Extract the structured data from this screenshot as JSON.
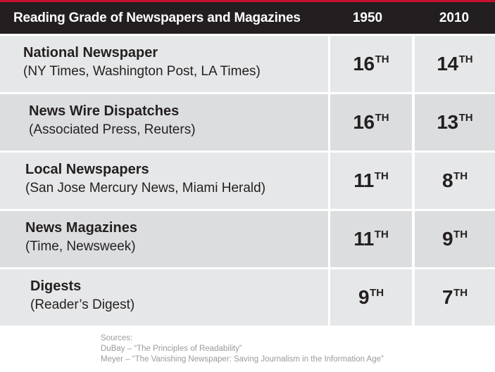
{
  "chart_data": {
    "type": "table",
    "title": "Reading Grade of Newspapers and Magazines",
    "columns": [
      "1950",
      "2010"
    ],
    "rows": [
      {
        "name": "National Newspaper",
        "examples": "(NY Times, Washington Post, LA Times)",
        "grades": [
          {
            "num": "16",
            "sfx": "TH"
          },
          {
            "num": "14",
            "sfx": "TH"
          }
        ]
      },
      {
        "name": "News Wire Dispatches",
        "examples": "(Associated Press, Reuters)",
        "grades": [
          {
            "num": "16",
            "sfx": "TH"
          },
          {
            "num": "13",
            "sfx": "TH"
          }
        ]
      },
      {
        "name": "Local Newspapers",
        "examples": "(San Jose Mercury  News, Miami Herald)",
        "grades": [
          {
            "num": "11",
            "sfx": "TH"
          },
          {
            "num": "8",
            "sfx": "TH"
          }
        ]
      },
      {
        "name": "News Magazines",
        "examples": "(Time, Newsweek)",
        "grades": [
          {
            "num": "11",
            "sfx": "TH"
          },
          {
            "num": "9",
            "sfx": "TH"
          }
        ]
      },
      {
        "name": "Digests",
        "examples": "(Reader’s Digest)",
        "grades": [
          {
            "num": "9",
            "sfx": "TH"
          },
          {
            "num": "7",
            "sfx": "TH"
          }
        ]
      }
    ]
  },
  "sources": {
    "heading": "Sources:",
    "items": [
      "DuBay – “The Principles of Readability”",
      "Meyer – “The Vanishing Newspaper: Saving Journalism in the Information Age”"
    ]
  },
  "colors": {
    "accent": "#c8102e",
    "header_bg": "#231f20",
    "row_light": "#e6e7e8",
    "row_dark": "#dcdddf",
    "text": "#231f20",
    "source_text": "#9a9a9a"
  }
}
